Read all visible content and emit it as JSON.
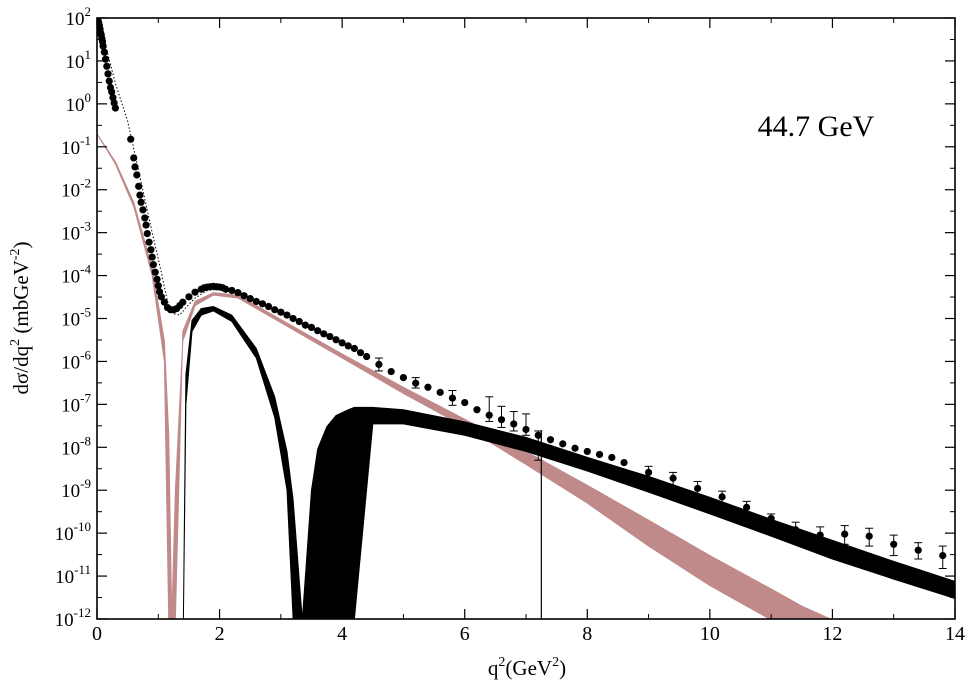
{
  "chart_data": {
    "type": "scatter",
    "annotation": "44.7 GeV",
    "xlabel": {
      "base": "q",
      "sup": "2",
      "unit": "(GeV",
      "unit_sup": "2",
      "unit_close": ")"
    },
    "ylabel": {
      "pre": "dσ/dq",
      "sup": "2",
      "mid": " (mbGeV",
      "sup2": "-2",
      "close": ")"
    },
    "xlim": [
      0,
      14
    ],
    "ylim_exp": [
      -12,
      2
    ],
    "log_y": true,
    "x_ticks": [
      "0",
      "2",
      "4",
      "6",
      "8",
      "10",
      "12",
      "14"
    ],
    "y_tick_exponents": [
      "2",
      "1",
      "0",
      "-1",
      "-2",
      "-3",
      "-4",
      "-5",
      "-6",
      "-7",
      "-8",
      "-9",
      "-10",
      "-11",
      "-12"
    ],
    "y_tick_base": "10",
    "colors": {
      "data": "#000000",
      "band_black": "#000000",
      "band_pink": "#c0898a"
    },
    "series": [
      {
        "kind": "band",
        "color": "#c0898a",
        "x": [
          0,
          0.3,
          0.6,
          0.9,
          1.1,
          1.17,
          1.22,
          1.28,
          1.4,
          1.6,
          1.9,
          2.3,
          3,
          4,
          5,
          6,
          7,
          8,
          9,
          10,
          11,
          11.5,
          12,
          12.3
        ],
        "y_low": [
          0.2,
          0.04,
          0.004,
          0.0001,
          1e-06,
          1e-12,
          1e-12,
          1e-09,
          3e-06,
          2e-05,
          3.5e-05,
          3e-05,
          8e-06,
          1.2e-06,
          1.8e-07,
          3e-08,
          4e-09,
          5e-10,
          5e-11,
          6e-12,
          6e-13,
          2e-13,
          5e-14,
          2e-14
        ],
        "y_high": [
          0.2,
          0.045,
          0.005,
          0.00015,
          3e-06,
          2e-08,
          1e-12,
          1e-12,
          5e-06,
          2.5e-05,
          4e-05,
          3.5e-05,
          9.5e-06,
          1.5e-06,
          2.5e-07,
          4.5e-08,
          8e-09,
          1.3e-09,
          2e-10,
          3e-11,
          5e-12,
          2e-12,
          8e-13,
          4e-13
        ]
      },
      {
        "kind": "band",
        "color": "#000000",
        "x": [
          1.41,
          1.45,
          1.55,
          1.7,
          1.9,
          2.2,
          2.6,
          2.9,
          3.1,
          3.2,
          3.35,
          3.5,
          3.55,
          3.6,
          3.75,
          3.9,
          4.1,
          4.2,
          4.5,
          5,
          6,
          7,
          8,
          9,
          10,
          11,
          12,
          13,
          14
        ],
        "y_low": [
          1e-12,
          1e-07,
          5e-06,
          1.2e-05,
          1.5e-05,
          8.5e-06,
          1.2e-06,
          5e-08,
          1e-09,
          1e-12,
          1e-12,
          1e-12,
          1e-12,
          1e-12,
          1e-12,
          1e-12,
          1e-12,
          1e-12,
          3.5e-08,
          3.5e-08,
          1.9e-08,
          8e-09,
          2.8e-09,
          9e-10,
          2.8e-10,
          8.5e-11,
          2.5e-11,
          8.5e-12,
          3e-12
        ],
        "y_high": [
          1e-12,
          5e-07,
          9e-06,
          1.7e-05,
          1.9e-05,
          1.2e-05,
          2e-06,
          1.5e-07,
          8e-09,
          6e-10,
          3e-13,
          1e-09,
          3e-09,
          9e-09,
          3e-08,
          5.5e-08,
          7.5e-08,
          8.5e-08,
          8.5e-08,
          7.5e-08,
          3.9e-08,
          1.7e-08,
          5.8e-09,
          2.1e-09,
          6.8e-10,
          2.1e-10,
          6.8e-11,
          2.2e-11,
          7.5e-12
        ]
      },
      {
        "kind": "curve",
        "color": "#000000",
        "dotted": true,
        "x": [
          0,
          0.15,
          0.3,
          0.5,
          0.7,
          0.9,
          1.05,
          1.15,
          1.25,
          1.35,
          1.45,
          1.6,
          1.8,
          2.0,
          2.3
        ],
        "y": [
          90,
          20,
          3,
          0.4,
          0.02,
          0.001,
          0.00012,
          2.5e-05,
          1.3e-05,
          1.2e-05,
          1.8e-05,
          3e-05,
          4.5e-05,
          4.8e-05,
          4e-05
        ]
      },
      {
        "kind": "points",
        "color": "#000000",
        "x": [
          0.01,
          0.02,
          0.03,
          0.04,
          0.05,
          0.06,
          0.07,
          0.08,
          0.09,
          0.1,
          0.12,
          0.14,
          0.16,
          0.18,
          0.2,
          0.22,
          0.24,
          0.26,
          0.28,
          0.3,
          0.55,
          0.6,
          0.62,
          0.65,
          0.68,
          0.7,
          0.72,
          0.75,
          0.78,
          0.8,
          0.82,
          0.85,
          0.88,
          0.9,
          0.92,
          0.95,
          0.98,
          1.0,
          1.02,
          1.05,
          1.1,
          1.15,
          1.2,
          1.25,
          1.3,
          1.35,
          1.4,
          1.5,
          1.6,
          1.7,
          1.75,
          1.8,
          1.85,
          1.9,
          1.95,
          2.0,
          2.05,
          2.1,
          2.2,
          2.3,
          2.4,
          2.5,
          2.6,
          2.7,
          2.8,
          2.9,
          3.0,
          3.1,
          3.2,
          3.3,
          3.4,
          3.5,
          3.6,
          3.7,
          3.8,
          3.9,
          4.0,
          4.1,
          4.2,
          4.3,
          4.4,
          4.6,
          4.8,
          5.0,
          5.2,
          5.4,
          5.6,
          5.8,
          6.0,
          6.2,
          6.4,
          6.6,
          6.8,
          7.0,
          7.2,
          7.4,
          7.6,
          7.8,
          8.0,
          8.2,
          8.4,
          8.6,
          9.0,
          9.4,
          9.8,
          10.2,
          10.6,
          11.0,
          11.4,
          11.8,
          12.2,
          12.6,
          13.0,
          13.4,
          13.8
        ],
        "y": [
          95,
          85,
          75,
          65,
          55,
          45,
          40,
          33,
          28,
          22,
          16,
          11,
          7.5,
          5,
          3.4,
          2.4,
          1.9,
          1.4,
          1.05,
          0.8,
          0.15,
          0.055,
          0.034,
          0.022,
          0.012,
          0.0075,
          0.0051,
          0.0034,
          0.0022,
          0.0015,
          0.00095,
          0.0006,
          0.0004,
          0.00027,
          0.00018,
          0.00012,
          8.2e-05,
          5.8e-05,
          4.2e-05,
          3.2e-05,
          2.4e-05,
          1.8e-05,
          1.6e-05,
          1.6e-05,
          1.7e-05,
          2e-05,
          2.4e-05,
          3.2e-05,
          4.1e-05,
          4.8e-05,
          5.2e-05,
          5.4e-05,
          5.5e-05,
          5.6e-05,
          5.5e-05,
          5.4e-05,
          5.2e-05,
          4.8e-05,
          4.5e-05,
          4e-05,
          3.4e-05,
          2.9e-05,
          2.5e-05,
          2.2e-05,
          1.9e-05,
          1.6e-05,
          1.4e-05,
          1.2e-05,
          1e-05,
          8.5e-06,
          7e-06,
          6.2e-06,
          5.2e-06,
          4.4e-06,
          3.8e-06,
          3.2e-06,
          2.7e-06,
          2.3e-06,
          2e-06,
          1.6e-06,
          1.3e-06,
          8.5e-07,
          5.8e-07,
          4.2e-07,
          3.1e-07,
          2.5e-07,
          1.9e-07,
          1.4e-07,
          1.1e-07,
          7.5e-08,
          5.6e-08,
          4.4e-08,
          3.5e-08,
          2.6e-08,
          1.9e-08,
          1.5e-08,
          1.2e-08,
          9.5e-09,
          8e-09,
          6.8e-09,
          5.8e-09,
          4.4e-09,
          2.6e-09,
          1.9e-09,
          1.1e-09,
          7e-10,
          4e-10,
          2.2e-10,
          1.2e-10,
          9e-11,
          9.5e-11,
          8.5e-11,
          5.5e-11,
          4e-11,
          3e-11
        ],
        "err_low": [
          null,
          null,
          null,
          null,
          null,
          null,
          null,
          null,
          null,
          null,
          null,
          null,
          null,
          null,
          null,
          null,
          null,
          null,
          null,
          null,
          null,
          null,
          null,
          null,
          null,
          null,
          null,
          null,
          null,
          null,
          null,
          null,
          null,
          null,
          null,
          null,
          null,
          null,
          null,
          null,
          null,
          null,
          null,
          null,
          null,
          null,
          null,
          null,
          null,
          null,
          null,
          null,
          null,
          null,
          null,
          null,
          null,
          null,
          null,
          null,
          null,
          null,
          null,
          null,
          null,
          null,
          null,
          null,
          null,
          null,
          null,
          null,
          null,
          null,
          null,
          null,
          null,
          null,
          null,
          null,
          null,
          6e-07,
          null,
          null,
          2.4e-07,
          null,
          null,
          9.5e-08,
          null,
          null,
          4e-08,
          2.9e-08,
          2.4e-08,
          1.9e-08,
          5e-09,
          null,
          null,
          null,
          null,
          null,
          null,
          null,
          1.7e-09,
          1.2e-09,
          7e-10,
          4.5e-10,
          2.5e-10,
          1.3e-10,
          6e-11,
          4.5e-11,
          5.5e-11,
          5e-11,
          3e-11,
          2.5e-11,
          1.5e-11
        ],
        "err_high": [
          null,
          null,
          null,
          null,
          null,
          null,
          null,
          null,
          null,
          null,
          null,
          null,
          null,
          null,
          null,
          null,
          null,
          null,
          null,
          null,
          null,
          null,
          null,
          null,
          null,
          null,
          null,
          null,
          null,
          null,
          null,
          null,
          null,
          null,
          null,
          null,
          null,
          null,
          null,
          null,
          null,
          null,
          null,
          null,
          null,
          null,
          null,
          null,
          null,
          null,
          null,
          null,
          null,
          null,
          null,
          null,
          null,
          null,
          null,
          null,
          null,
          null,
          null,
          null,
          null,
          null,
          null,
          null,
          null,
          null,
          null,
          null,
          null,
          null,
          null,
          null,
          null,
          null,
          null,
          null,
          null,
          1.2e-06,
          null,
          null,
          4.2e-07,
          null,
          null,
          2.1e-07,
          null,
          null,
          1.5e-07,
          9e-08,
          6.8e-08,
          6e-08,
          2.4e-08,
          null,
          null,
          null,
          null,
          null,
          null,
          null,
          3.6e-09,
          2.6e-09,
          1.6e-09,
          9.5e-10,
          5.5e-10,
          2.8e-10,
          1.8e-10,
          1.4e-10,
          1.5e-10,
          1.3e-10,
          9e-11,
          6e-11,
          5e-11
        ]
      },
      {
        "kind": "vline",
        "color": "#000000",
        "x": 7.25,
        "y_low": 1e-12,
        "y_high": 2.5e-08
      }
    ]
  }
}
